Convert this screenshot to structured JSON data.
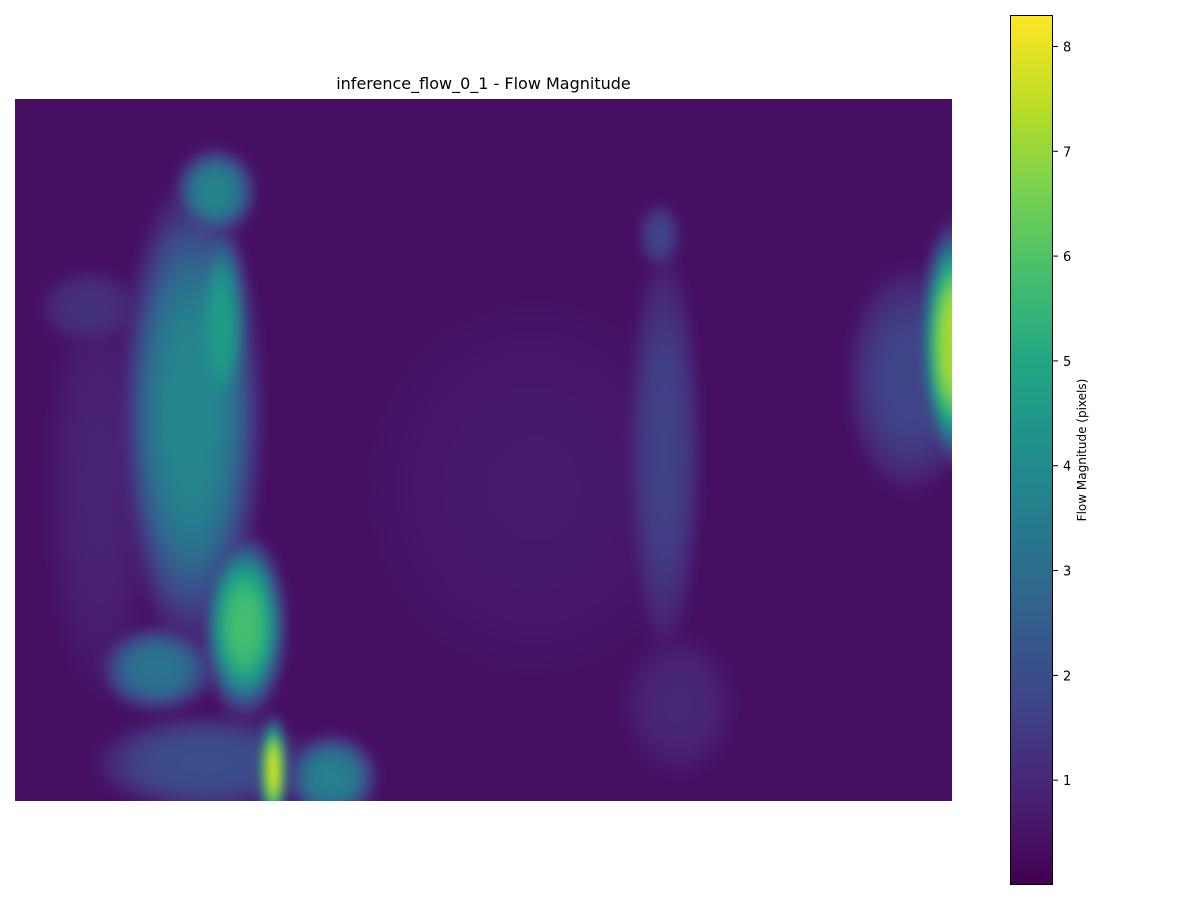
{
  "chart_data": {
    "type": "heatmap",
    "title": "inference_flow_0_1 - Flow Magnitude",
    "colormap": "viridis",
    "colorbar": {
      "label": "Flow Magnitude (pixels)",
      "vmin": 0,
      "vmax": 8.3,
      "ticks": [
        1,
        2,
        3,
        4,
        5,
        6,
        7,
        8
      ],
      "tick_labels": [
        "1",
        "2",
        "3",
        "4",
        "5",
        "6",
        "7",
        "8"
      ]
    },
    "axes": "off",
    "grid": false,
    "field": {
      "background": 0.35,
      "blobs": [
        {
          "cx": 0.22,
          "cy": 0.14,
          "rx": 0.035,
          "ry": 0.05,
          "v": 3.7
        },
        {
          "cx": 0.195,
          "cy": 0.45,
          "rx": 0.06,
          "ry": 0.26,
          "v": 3.8
        },
        {
          "cx": 0.225,
          "cy": 0.33,
          "rx": 0.025,
          "ry": 0.12,
          "v": 4.6
        },
        {
          "cx": 0.25,
          "cy": 0.74,
          "rx": 0.035,
          "ry": 0.1,
          "v": 5.8
        },
        {
          "cx": 0.16,
          "cy": 0.8,
          "rx": 0.05,
          "ry": 0.05,
          "v": 3.2
        },
        {
          "cx": 0.21,
          "cy": 0.93,
          "rx": 0.1,
          "ry": 0.06,
          "v": 2.0
        },
        {
          "cx": 0.28,
          "cy": 0.94,
          "rx": 0.012,
          "ry": 0.06,
          "v": 7.8
        },
        {
          "cx": 0.34,
          "cy": 0.95,
          "rx": 0.04,
          "ry": 0.05,
          "v": 3.6
        },
        {
          "cx": 0.1,
          "cy": 0.55,
          "rx": 0.06,
          "ry": 0.3,
          "v": 0.8
        },
        {
          "cx": 0.09,
          "cy": 0.3,
          "rx": 0.05,
          "ry": 0.05,
          "v": 1.2
        },
        {
          "cx": 0.68,
          "cy": 0.2,
          "rx": 0.02,
          "ry": 0.04,
          "v": 1.7
        },
        {
          "cx": 0.685,
          "cy": 0.5,
          "rx": 0.035,
          "ry": 0.25,
          "v": 1.6
        },
        {
          "cx": 0.7,
          "cy": 0.85,
          "rx": 0.06,
          "ry": 0.1,
          "v": 0.9
        },
        {
          "cx": 0.985,
          "cy": 0.35,
          "rx": 0.028,
          "ry": 0.13,
          "v": 7.2
        },
        {
          "cx": 1.0,
          "cy": 0.3,
          "rx": 0.018,
          "ry": 0.07,
          "v": 8.2
        },
        {
          "cx": 0.94,
          "cy": 0.4,
          "rx": 0.06,
          "ry": 0.14,
          "v": 1.7
        },
        {
          "cx": 0.55,
          "cy": 0.55,
          "rx": 0.2,
          "ry": 0.3,
          "v": 0.6
        }
      ]
    }
  }
}
